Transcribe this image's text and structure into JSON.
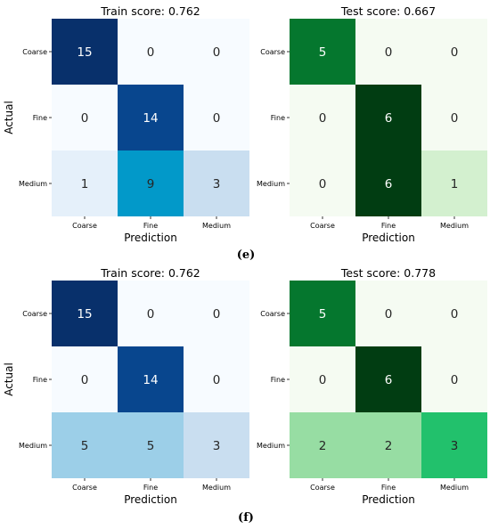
{
  "figure": {
    "captions": [
      "(e)",
      "(f)"
    ]
  },
  "chart_data": [
    {
      "type": "heatmap",
      "title": "Train score: 0.762",
      "xlabel": "Prediction",
      "ylabel": "Actual",
      "x_categories": [
        "Coarse",
        "Fine",
        "Medium"
      ],
      "y_categories": [
        "Coarse",
        "Fine",
        "Medium"
      ],
      "values": [
        [
          15,
          0,
          0
        ],
        [
          0,
          14,
          0
        ],
        [
          1,
          9,
          3
        ]
      ],
      "colormap": "blues",
      "vmax": 15,
      "cell_colors": [
        [
          "#08306b",
          "#f7fbff",
          "#f7fbff"
        ],
        [
          "#f7fbff",
          "#08468e",
          "#f7fbff"
        ],
        [
          "#e5f0fa",
          "#0299c9",
          "#c9def0"
        ]
      ]
    },
    {
      "type": "heatmap",
      "title": "Test score: 0.667",
      "xlabel": "Prediction",
      "ylabel": "",
      "x_categories": [
        "Coarse",
        "Fine",
        "Medium"
      ],
      "y_categories": [
        "Coarse",
        "Fine",
        "Medium"
      ],
      "values": [
        [
          5,
          0,
          0
        ],
        [
          0,
          6,
          0
        ],
        [
          0,
          6,
          1
        ]
      ],
      "colormap": "greens",
      "vmax": 6,
      "cell_colors": [
        [
          "#05772e",
          "#f5fbf2",
          "#f5fbf2"
        ],
        [
          "#f5fbf2",
          "#013d12",
          "#f5fbf2"
        ],
        [
          "#f5fbf2",
          "#013d12",
          "#d3f0cf"
        ]
      ]
    },
    {
      "type": "heatmap",
      "title": "Train score: 0.762",
      "xlabel": "Prediction",
      "ylabel": "Actual",
      "x_categories": [
        "Coarse",
        "Fine",
        "Medium"
      ],
      "y_categories": [
        "Coarse",
        "Fine",
        "Medium"
      ],
      "values": [
        [
          15,
          0,
          0
        ],
        [
          0,
          14,
          0
        ],
        [
          5,
          5,
          3
        ]
      ],
      "colormap": "blues",
      "vmax": 15,
      "cell_colors": [
        [
          "#08306b",
          "#f7fbff",
          "#f7fbff"
        ],
        [
          "#f7fbff",
          "#08468e",
          "#f7fbff"
        ],
        [
          "#9ccfe8",
          "#9ccfe8",
          "#c9def0"
        ]
      ]
    },
    {
      "type": "heatmap",
      "title": "Test score: 0.778",
      "xlabel": "Prediction",
      "ylabel": "",
      "x_categories": [
        "Coarse",
        "Fine",
        "Medium"
      ],
      "y_categories": [
        "Coarse",
        "Fine",
        "Medium"
      ],
      "values": [
        [
          5,
          0,
          0
        ],
        [
          0,
          6,
          0
        ],
        [
          2,
          2,
          3
        ]
      ],
      "colormap": "greens",
      "vmax": 6,
      "cell_colors": [
        [
          "#05772e",
          "#f5fbf2",
          "#f5fbf2"
        ],
        [
          "#f5fbf2",
          "#013d12",
          "#f5fbf2"
        ],
        [
          "#97dda3",
          "#97dda3",
          "#22c16c"
        ]
      ]
    }
  ]
}
